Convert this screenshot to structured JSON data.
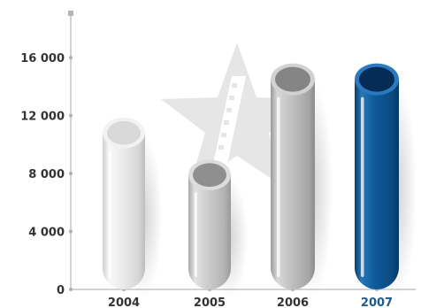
{
  "chart_data": {
    "type": "bar",
    "categories": [
      "2004",
      "2005",
      "2006",
      "2007"
    ],
    "values": [
      10800,
      7900,
      14500,
      14500
    ],
    "yticks": [
      0,
      4000,
      8000,
      12000,
      16000
    ],
    "ytick_labels": [
      "0",
      "4 000",
      "8 000",
      "12 000",
      "16 000"
    ],
    "ylim": [
      0,
      19000
    ],
    "highlight_category": "2007",
    "colors": {
      "bar_light": "#e6e6e6",
      "bar_mid": "#c7c7c7",
      "bar_dark": "#b5b5b5",
      "bar_highlight": "#0d5795",
      "highlight_label": "#1e5a8c",
      "axis": "#c4c4c4",
      "text": "#333333",
      "watermark": "#e3e3e3"
    },
    "grid": false,
    "legend": "none"
  }
}
